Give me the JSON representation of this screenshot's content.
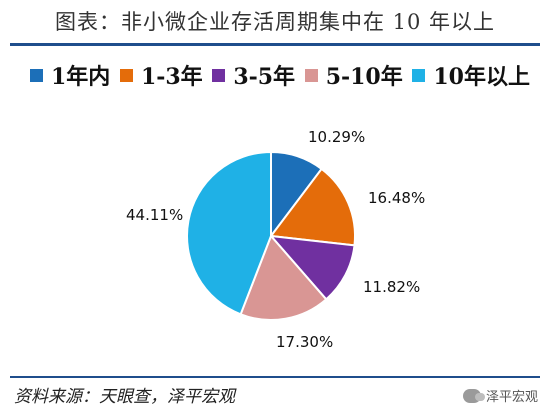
{
  "chart_data": {
    "type": "pie",
    "title": "图表：非小微企业存活周期集中在 10 年以上",
    "categories": [
      "1年内",
      "1-3年",
      "3-5年",
      "5-10年",
      "10年以上"
    ],
    "values": [
      10.29,
      16.48,
      11.82,
      17.3,
      44.11
    ],
    "data_labels": [
      "10.29%",
      "16.48%",
      "11.82%",
      "17.30%",
      "44.11%"
    ],
    "colors": [
      "#1c6fb8",
      "#e46c0a",
      "#7030a0",
      "#d99694",
      "#1fb1e6"
    ],
    "legend_position": "top",
    "start_angle": "12 o'clock, clockwise"
  },
  "source": "资料来源：天眼查，泽平宏观",
  "watermark": "泽平宏观"
}
